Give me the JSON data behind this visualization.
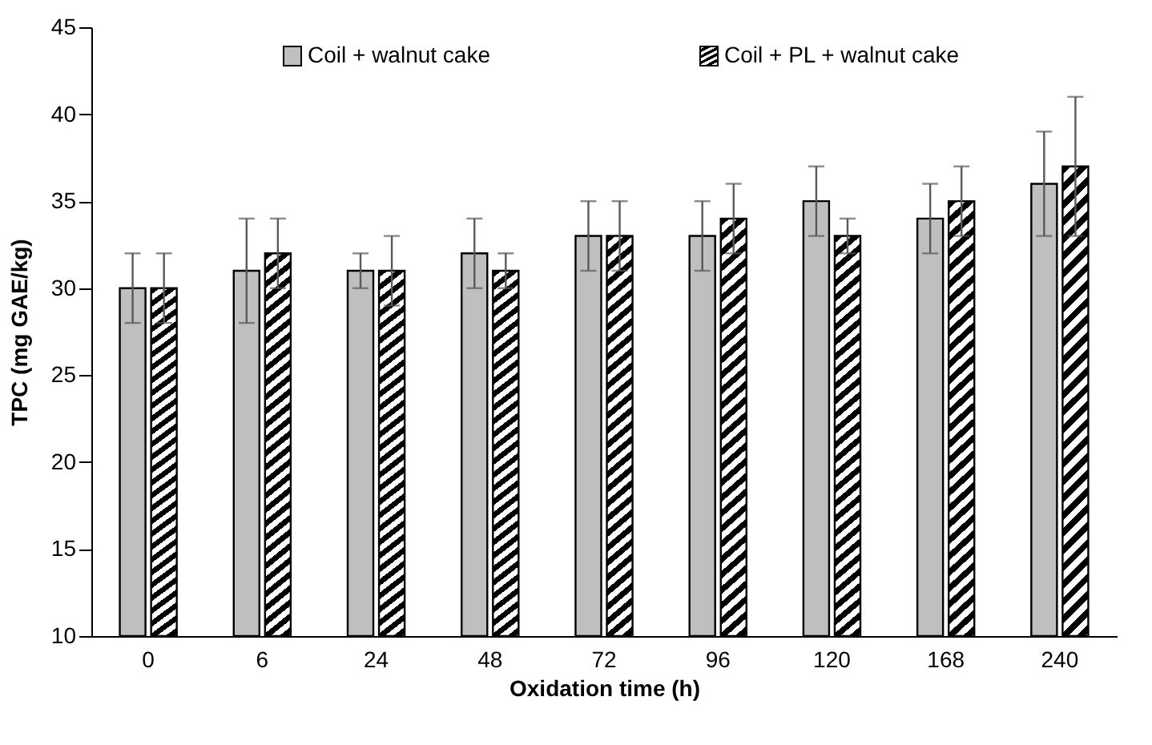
{
  "chart_data": {
    "type": "bar",
    "xlabel": "Oxidation time (h)",
    "ylabel": "TPC (mg GAE/kg)",
    "categories": [
      "0",
      "6",
      "24",
      "48",
      "72",
      "96",
      "120",
      "168",
      "240"
    ],
    "series": [
      {
        "name": "Coil + walnut cake",
        "color": "#bfbfbf",
        "values": [
          30,
          31,
          31,
          32,
          33,
          33,
          35,
          34,
          36
        ],
        "errors": [
          2,
          3,
          1,
          2,
          2,
          2,
          2,
          2,
          3
        ]
      },
      {
        "name": "Coil + PL + walnut cake",
        "color": "#000000",
        "values": [
          30,
          32,
          31,
          31,
          33,
          34,
          33,
          35,
          37
        ],
        "errors": [
          2,
          2,
          2,
          1,
          2,
          2,
          1,
          2,
          4
        ]
      }
    ],
    "ylim": [
      10,
      45
    ],
    "yticks": [
      10,
      15,
      20,
      25,
      30,
      35,
      40,
      45
    ],
    "grid": false,
    "legend": "top"
  }
}
